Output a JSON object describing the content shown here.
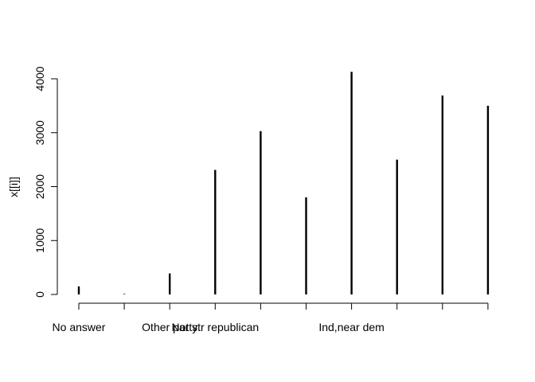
{
  "chart_data": {
    "type": "bar",
    "style": "vertical-lines",
    "ylabel": "x[[i]]",
    "xlabel": "",
    "title": "",
    "ylim": [
      0,
      4200
    ],
    "yticks": [
      0,
      1000,
      2000,
      3000,
      4000
    ],
    "categories": [
      "No answer",
      "",
      "Other party",
      "Not str republican",
      "",
      "",
      "Ind,near dem",
      "",
      "",
      ""
    ],
    "values": [
      150,
      10,
      390,
      2310,
      3030,
      1800,
      4130,
      2500,
      3690,
      3500
    ],
    "grid": false,
    "legend": "none",
    "colors": {
      "line": "#000000"
    }
  }
}
